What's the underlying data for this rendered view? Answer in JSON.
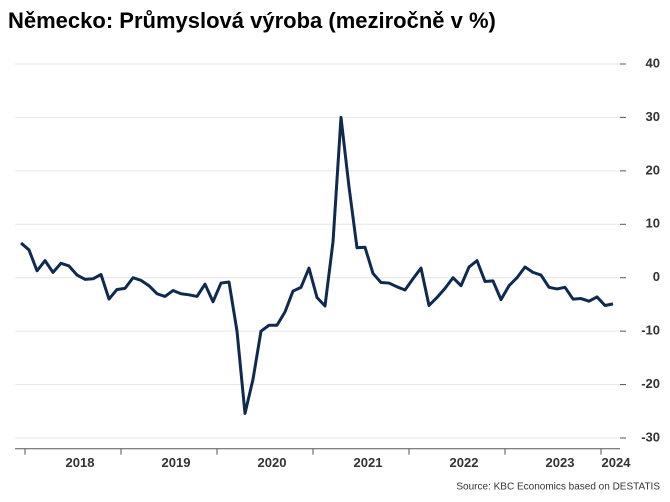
{
  "chart_data": {
    "type": "line",
    "title": "Německo: Průmyslová výroba (meziročně v %)",
    "source": "Source: KBC Economics based on DESTATIS",
    "categories": [
      null,
      null,
      null,
      null,
      null,
      null,
      null,
      "2018",
      null,
      null,
      null,
      null,
      null,
      null,
      null,
      null,
      null,
      null,
      null,
      "2019",
      null,
      null,
      null,
      null,
      null,
      null,
      null,
      null,
      null,
      null,
      null,
      "2020",
      null,
      null,
      null,
      null,
      null,
      null,
      null,
      null,
      null,
      null,
      null,
      "2021",
      null,
      null,
      null,
      null,
      null,
      null,
      null,
      null,
      null,
      null,
      null,
      "2022",
      null,
      null,
      null,
      null,
      null,
      null,
      null,
      null,
      null,
      null,
      null,
      "2023",
      null,
      null,
      null,
      null,
      null,
      null,
      "2024"
    ],
    "series": [
      {
        "color": "#0f2a4f",
        "values": [
          6.5,
          5.2,
          1.3,
          3.2,
          1.0,
          2.7,
          2.2,
          0.5,
          -0.3,
          -0.2,
          0.6,
          -4.0,
          -2.2,
          -2.0,
          0.0,
          -0.5,
          -1.5,
          -3.0,
          -3.5,
          -2.4,
          -3.0,
          -3.2,
          -3.5,
          -1.2,
          -4.5,
          -1.0,
          -0.8,
          -10.0,
          -25.4,
          -19.0,
          -10.0,
          -8.9,
          -8.9,
          -6.4,
          -2.5,
          -1.8,
          1.8,
          -3.7,
          -5.3,
          6.7,
          30.0,
          17.0,
          5.6,
          5.7,
          0.8,
          -0.9,
          -1.0,
          -1.7,
          -2.3,
          -0.2,
          1.8,
          -5.2,
          -3.7,
          -2.0,
          0.0,
          -1.5,
          2.0,
          3.2,
          -0.7,
          -0.6,
          -4.1,
          -1.5,
          0.0,
          2.0,
          1.0,
          0.5,
          -1.8,
          -2.1,
          -1.8,
          -4.0,
          -3.9,
          -4.4,
          -3.6,
          -5.2,
          -4.9
        ]
      }
    ],
    "ylim": [
      -32,
      42
    ],
    "yticks": [
      -30,
      -20,
      -10,
      0,
      10,
      20,
      30,
      40
    ],
    "grid": true
  }
}
